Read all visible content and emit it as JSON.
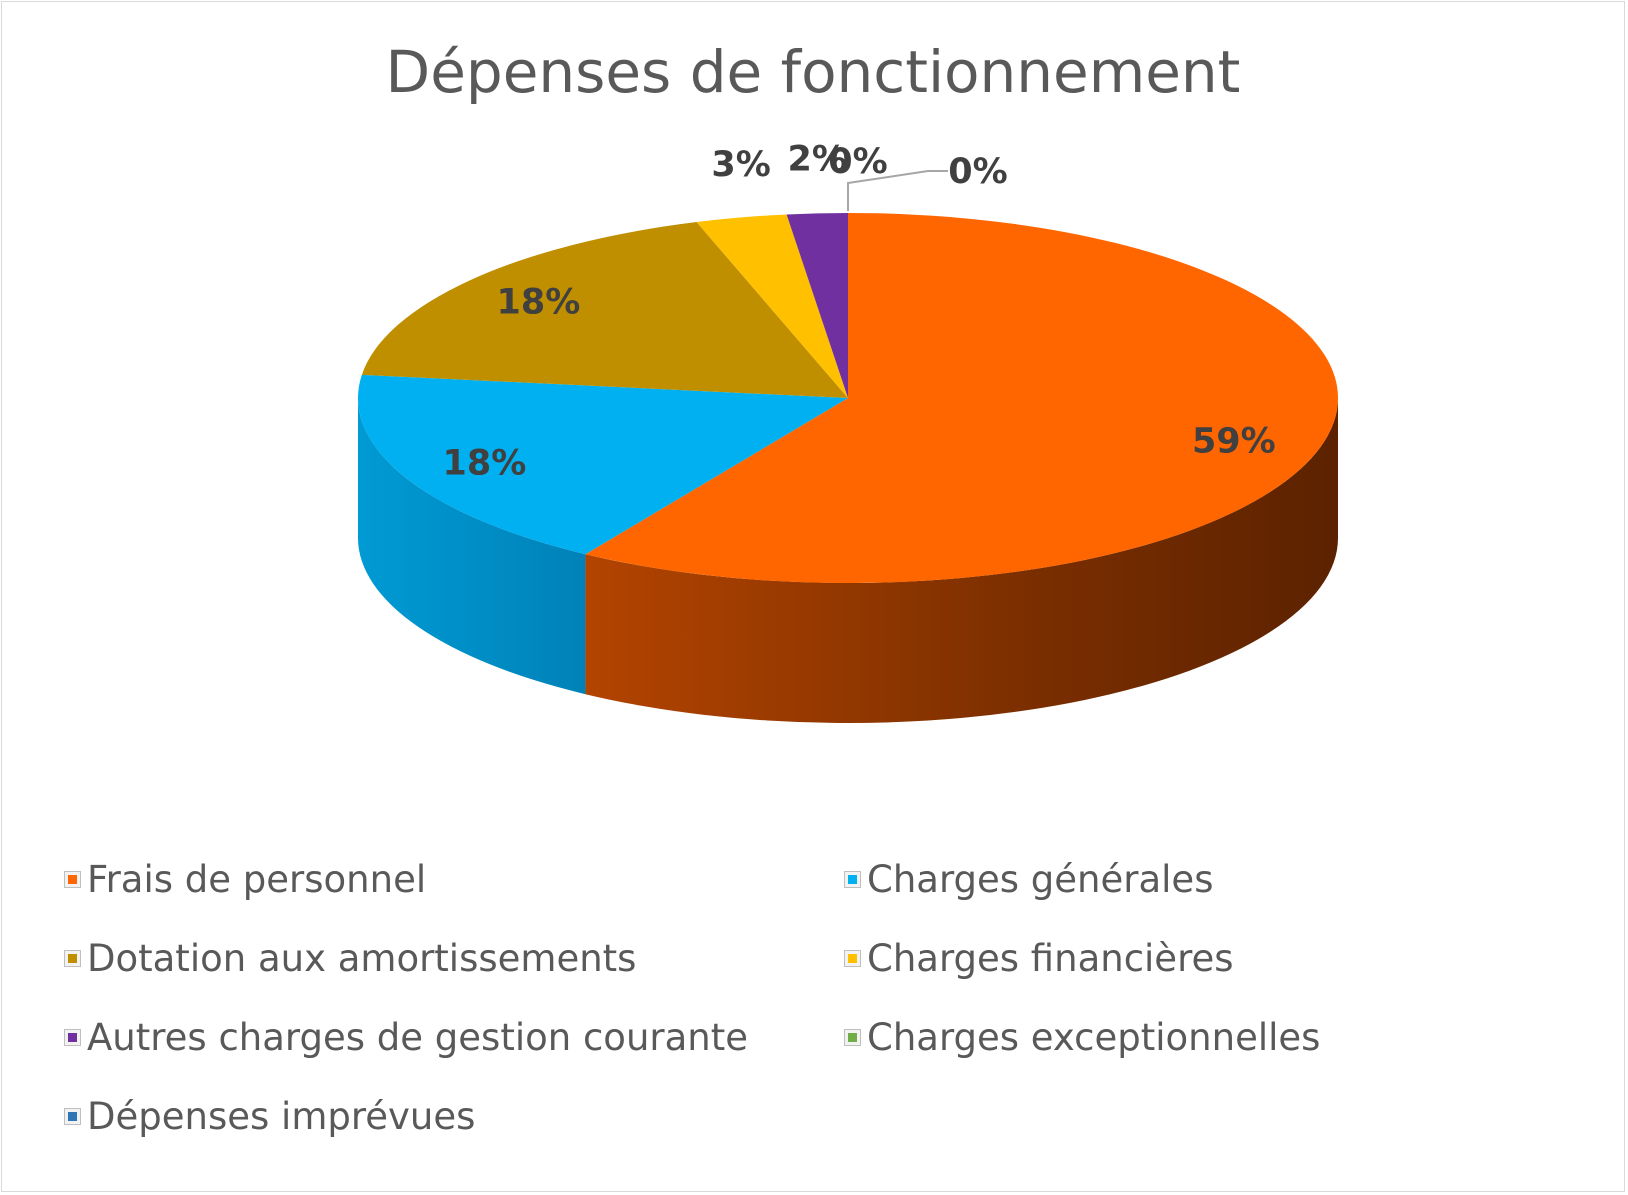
{
  "chart_data": {
    "type": "pie",
    "title": "Dépenses de fonctionnement",
    "categories": [
      "Frais de personnel",
      "Charges générales",
      "Dotation aux amortissements",
      "Charges financières",
      "Autres charges de gestion courante",
      "Charges exceptionnelles",
      "Dépenses imprévues"
    ],
    "values": [
      59,
      18,
      18,
      3,
      2,
      0,
      0
    ],
    "data_labels": [
      "59%",
      "18%",
      "18%",
      "3%",
      "2%",
      "0%",
      "0%"
    ],
    "colors": [
      "#ff6600",
      "#00b0f0",
      "#bf8f00",
      "#ffc000",
      "#7030a0",
      "#70ad47",
      "#2e75b6"
    ],
    "style": "3d",
    "legend_position": "bottom"
  }
}
